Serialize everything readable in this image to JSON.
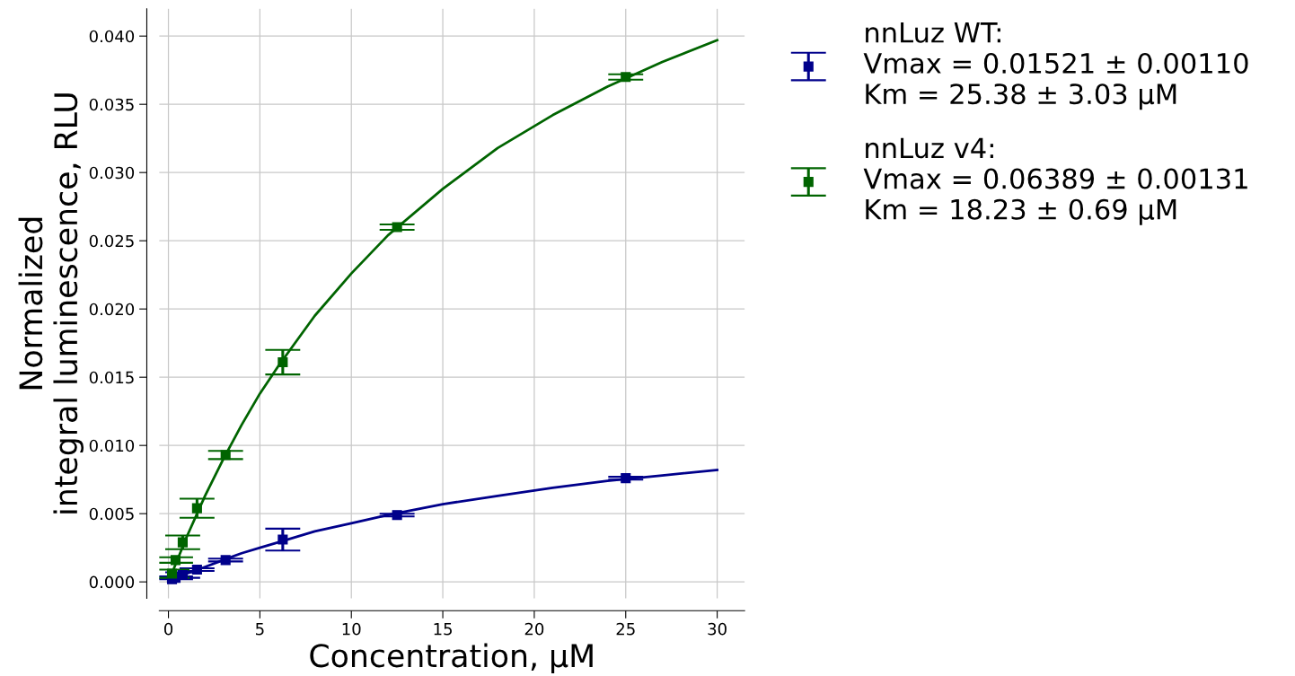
{
  "chart_data": {
    "type": "scatter",
    "xlabel": "Concentration, µM",
    "ylabel": "Normalized\nintegral luminescence, RLU",
    "xlim": [
      -0.5,
      31.5
    ],
    "xticks": [
      0,
      5,
      10,
      15,
      20,
      25,
      30
    ],
    "ylim": [
      -0.0012,
      0.042
    ],
    "yticks": [
      {
        "value": 0,
        "label": "0.000"
      },
      {
        "value": 0.005,
        "label": "0.005"
      },
      {
        "value": 0.01,
        "label": "0.010"
      },
      {
        "value": 0.015,
        "label": "0.015"
      },
      {
        "value": 0.02,
        "label": "0.020"
      },
      {
        "value": 0.025,
        "label": "0.025"
      },
      {
        "value": 0.03,
        "label": "0.030"
      },
      {
        "value": 0.035,
        "label": "0.035"
      },
      {
        "value": 0.04,
        "label": "0.040"
      }
    ],
    "grid": true,
    "legend": "right",
    "series": [
      {
        "name": "nnLuz WT:\nVmax = 0.01521 ± 0.00110\nKm = 25.38 ± 3.03 µM",
        "marker": "square",
        "color": "#00008b",
        "x": [
          0.195,
          0.39,
          0.78,
          1.5625,
          3.125,
          6.25,
          12.5,
          25
        ],
        "values": [
          0.0002,
          0.0003,
          0.0005,
          0.0009,
          0.0016,
          0.0031,
          0.0049,
          0.0076
        ],
        "errors": [
          null,
          0.0001,
          0.0002,
          0.0001,
          0.0001,
          0.0008,
          0.0001,
          0.0001
        ]
      },
      {
        "name": "nnLuz v4:\nVmax = 0.06389 ± 0.00131\nKm = 18.23 ± 0.69 µM",
        "marker": "square",
        "color": "#006400",
        "x": [
          0.195,
          0.39,
          0.78,
          1.5625,
          3.125,
          6.25,
          12.5,
          25
        ],
        "values": [
          0.0006,
          0.0016,
          0.0029,
          0.0054,
          0.0093,
          0.0161,
          0.026,
          0.037
        ],
        "errors": [
          0.0003,
          0.0002,
          0.0005,
          0.0007,
          0.0003,
          0.0009,
          0.0002,
          0.0002
        ]
      },
      {
        "type": "line",
        "marker": "none",
        "color": "#00008b",
        "x": [
          0,
          1,
          2,
          3,
          4,
          5,
          6,
          8,
          10,
          12,
          15,
          18,
          21,
          24,
          27,
          30
        ],
        "values": [
          0,
          0.0006,
          0.0011,
          0.0016,
          0.0021,
          0.0025,
          0.0029,
          0.0037,
          0.0043,
          0.0049,
          0.0057,
          0.0063,
          0.0069,
          0.0074,
          0.0078,
          0.0082
        ]
      },
      {
        "type": "line",
        "marker": "none",
        "color": "#006400",
        "x": [
          0,
          1,
          2,
          3,
          4,
          5,
          6,
          8,
          10,
          12,
          15,
          18,
          21,
          24,
          27,
          30
        ],
        "values": [
          0,
          0.0033,
          0.0063,
          0.009,
          0.0115,
          0.0138,
          0.0158,
          0.0195,
          0.0226,
          0.0254,
          0.0288,
          0.0318,
          0.0342,
          0.0363,
          0.0381,
          0.0397
        ]
      }
    ]
  }
}
